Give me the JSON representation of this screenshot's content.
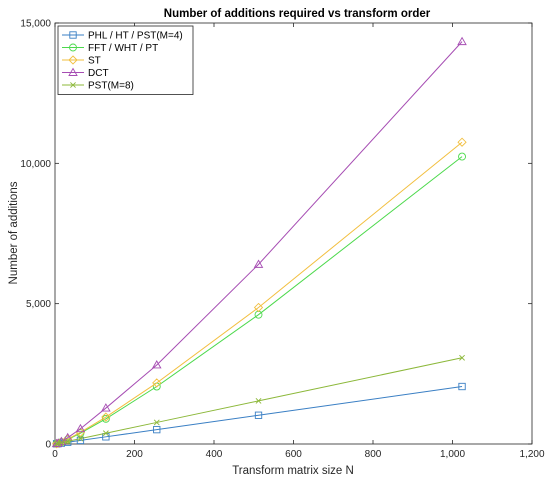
{
  "chart_data": {
    "type": "line",
    "title": "Number of additions required vs transform order",
    "xlabel": "Transform matrix size N",
    "ylabel": "Number of additions",
    "xlim": [
      0,
      1200
    ],
    "ylim": [
      0,
      15000
    ],
    "xticks": [
      0,
      200,
      400,
      600,
      800,
      1000,
      1200
    ],
    "xtick_labels": [
      "0",
      "200",
      "400",
      "600",
      "800",
      "1,000",
      "1,200"
    ],
    "yticks": [
      0,
      5000,
      10000,
      15000
    ],
    "ytick_labels": [
      "0",
      "5,000",
      "10,000",
      "15,000"
    ],
    "grid": false,
    "legend_position": "top-left",
    "x": [
      4,
      8,
      16,
      32,
      64,
      128,
      256,
      512,
      1024
    ],
    "series": [
      {
        "name": "PHL / HT / PST(M=4)",
        "marker": "square",
        "color": "#3a7fc4",
        "values": [
          8,
          16,
          32,
          64,
          128,
          256,
          512,
          1024,
          2048
        ]
      },
      {
        "name": "FFT / WHT / PT",
        "marker": "circle",
        "color": "#4cd94c",
        "values": [
          8,
          24,
          64,
          160,
          384,
          896,
          2048,
          4608,
          10240
        ]
      },
      {
        "name": "ST",
        "marker": "diamond",
        "color": "#f2bf3f",
        "values": [
          10,
          28,
          72,
          176,
          416,
          960,
          2176,
          4864,
          10752
        ]
      },
      {
        "name": "DCT",
        "marker": "triangle",
        "color": "#a64db3",
        "values": [
          12,
          32,
          88,
          224,
          544,
          1280,
          2816,
          6400,
          14336
        ]
      },
      {
        "name": "PST(M=8)",
        "marker": "x",
        "color": "#8cb83a",
        "values": [
          12,
          24,
          48,
          96,
          192,
          384,
          768,
          1536,
          3072
        ]
      }
    ]
  }
}
